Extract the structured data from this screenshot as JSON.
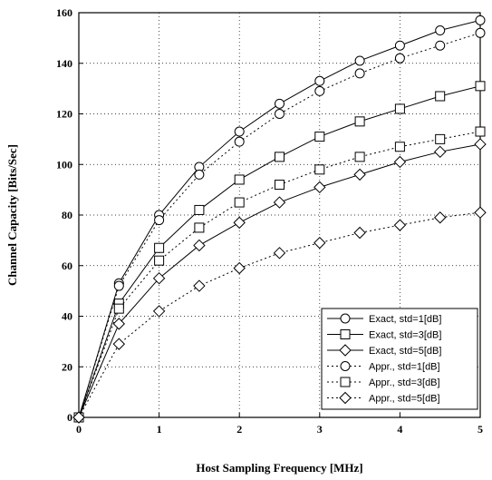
{
  "chart_data": {
    "type": "line",
    "title": "",
    "xlabel": "Host Sampling Frequency [MHz]",
    "ylabel": "Channel Capacity [Bits/Sec]",
    "xlim": [
      0,
      5
    ],
    "ylim": [
      0,
      160
    ],
    "xticks": [
      0,
      1,
      2,
      3,
      4,
      5
    ],
    "yticks": [
      0,
      20,
      40,
      60,
      80,
      100,
      120,
      140,
      160
    ],
    "grid": true,
    "legend_position": "bottom-right",
    "x": [
      0,
      0.5,
      1,
      1.5,
      2,
      2.5,
      3,
      3.5,
      4,
      4.5,
      5
    ],
    "series": [
      {
        "name": "Exact, std=1[dB]",
        "marker": "circle",
        "line": "solid",
        "values": [
          0,
          53,
          80,
          99,
          113,
          124,
          133,
          141,
          147,
          153,
          157
        ]
      },
      {
        "name": "Exact, std=3[dB]",
        "marker": "square",
        "line": "solid",
        "values": [
          0,
          45,
          67,
          82,
          94,
          103,
          111,
          117,
          122,
          127,
          131
        ]
      },
      {
        "name": "Exact, std=5[dB]",
        "marker": "diamond",
        "line": "solid",
        "values": [
          0,
          37,
          55,
          68,
          77,
          85,
          91,
          96,
          101,
          105,
          108
        ]
      },
      {
        "name": "Appr., std=1[dB]",
        "marker": "circle",
        "line": "dotted",
        "values": [
          0,
          52,
          78,
          96,
          109,
          120,
          129,
          136,
          142,
          147,
          152
        ]
      },
      {
        "name": "Appr., std=3[dB]",
        "marker": "square",
        "line": "dotted",
        "values": [
          0,
          43,
          62,
          75,
          85,
          92,
          98,
          103,
          107,
          110,
          113
        ]
      },
      {
        "name": "Appr., std=5[dB]",
        "marker": "diamond",
        "line": "dotted",
        "values": [
          0,
          29,
          42,
          52,
          59,
          65,
          69,
          73,
          76,
          79,
          81
        ]
      }
    ]
  }
}
